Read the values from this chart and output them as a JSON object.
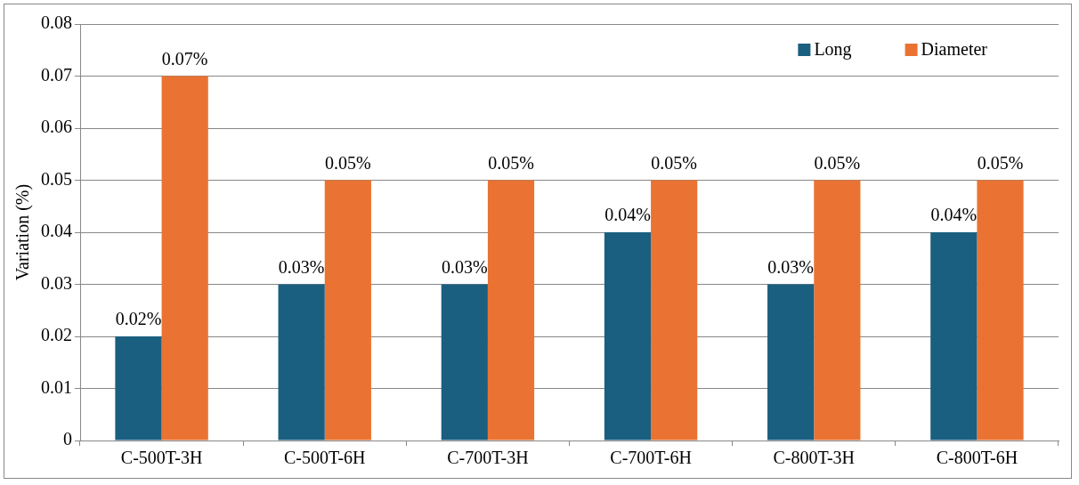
{
  "chart_data": {
    "type": "bar",
    "ylabel": "Variation (%)",
    "categories": [
      "C-500T-3H",
      "C-500T-6H",
      "C-700T-3H",
      "C-700T-6H",
      "C-800T-3H",
      "C-800T-6H"
    ],
    "series": [
      {
        "name": "Long",
        "color": "#1a5f80",
        "values": [
          0.02,
          0.03,
          0.03,
          0.04,
          0.03,
          0.04
        ],
        "value_labels": [
          "0.02%",
          "0.03%",
          "0.03%",
          "0.04%",
          "0.03%",
          "0.04%"
        ]
      },
      {
        "name": "Diameter",
        "color": "#ea7333",
        "values": [
          0.07,
          0.05,
          0.05,
          0.05,
          0.05,
          0.05
        ],
        "value_labels": [
          "0.07%",
          "0.05%",
          "0.05%",
          "0.05%",
          "0.05%",
          "0.05%"
        ]
      }
    ],
    "ylim": [
      0,
      0.08
    ],
    "yticks": [
      0,
      0.01,
      0.02,
      0.03,
      0.04,
      0.05,
      0.06,
      0.07,
      0.08
    ],
    "grid": "y",
    "legend": "top right"
  }
}
